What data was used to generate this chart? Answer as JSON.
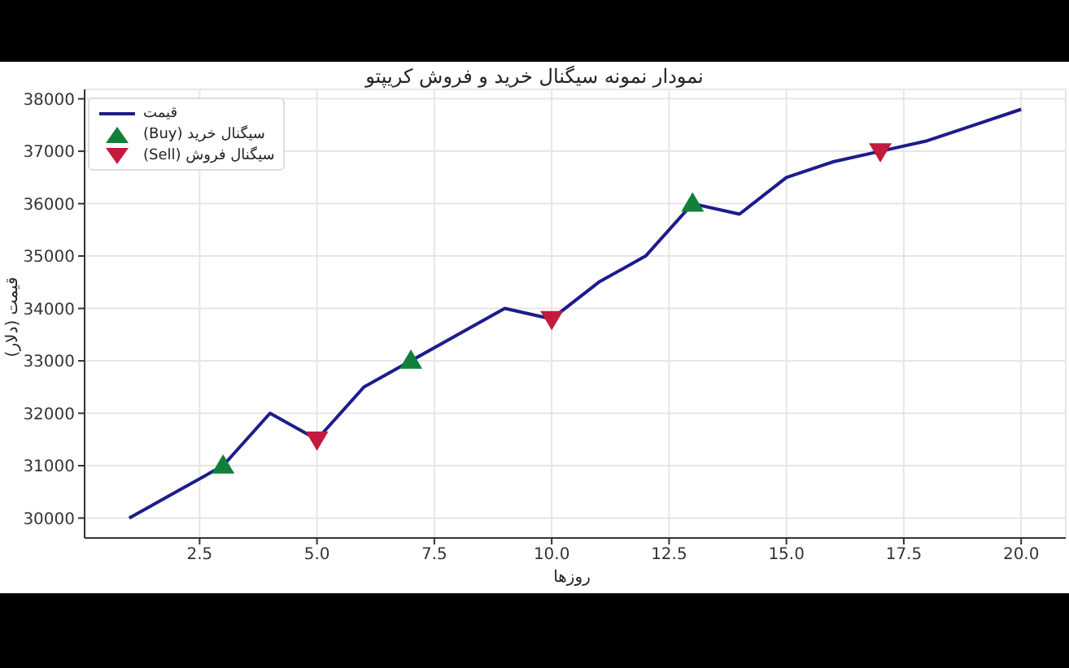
{
  "chart_data": {
    "type": "line",
    "title": "نمودار نمونه سیگنال خرید و فروش کریپتو",
    "xlabel": "روزها",
    "ylabel": "قیمت (دلار)",
    "x": [
      1,
      2,
      3,
      4,
      5,
      6,
      7,
      8,
      9,
      10,
      11,
      12,
      13,
      14,
      15,
      16,
      17,
      18,
      19,
      20
    ],
    "series": [
      {
        "name": "قیمت",
        "color": "#1c1c8c",
        "marker": "none",
        "values": [
          30000,
          30500,
          31000,
          32000,
          31500,
          32500,
          33000,
          33500,
          34000,
          33800,
          34500,
          35000,
          36000,
          35800,
          36500,
          36800,
          37000,
          37200,
          37500,
          37800
        ]
      },
      {
        "name": "سیگنال خرید (Buy)",
        "type": "scatter",
        "color": "#12803a",
        "marker": "triangle",
        "x": [
          3,
          7,
          13
        ],
        "values": [
          31000,
          33000,
          36000
        ]
      },
      {
        "name": "سیگنال فروش (Sell)",
        "type": "scatter",
        "color": "#c41a3e",
        "marker": "triangle-down",
        "x": [
          5,
          10,
          17
        ],
        "values": [
          31500,
          33800,
          37000
        ]
      }
    ],
    "xlim": [
      0.05,
      20.95
    ],
    "ylim": [
      29620,
      38180
    ],
    "xticks": [
      {
        "value": 2.5,
        "label": "2.5"
      },
      {
        "value": 5,
        "label": "5.0"
      },
      {
        "value": 7.5,
        "label": "7.5"
      },
      {
        "value": 10,
        "label": "10.0"
      },
      {
        "value": 12.5,
        "label": "12.5"
      },
      {
        "value": 15,
        "label": "15.0"
      },
      {
        "value": 17.5,
        "label": "17.5"
      },
      {
        "value": 20,
        "label": "20.0"
      }
    ],
    "yticks": [
      30000,
      31000,
      32000,
      33000,
      34000,
      35000,
      36000,
      37000,
      38000
    ],
    "grid": true,
    "legend": "top left"
  }
}
